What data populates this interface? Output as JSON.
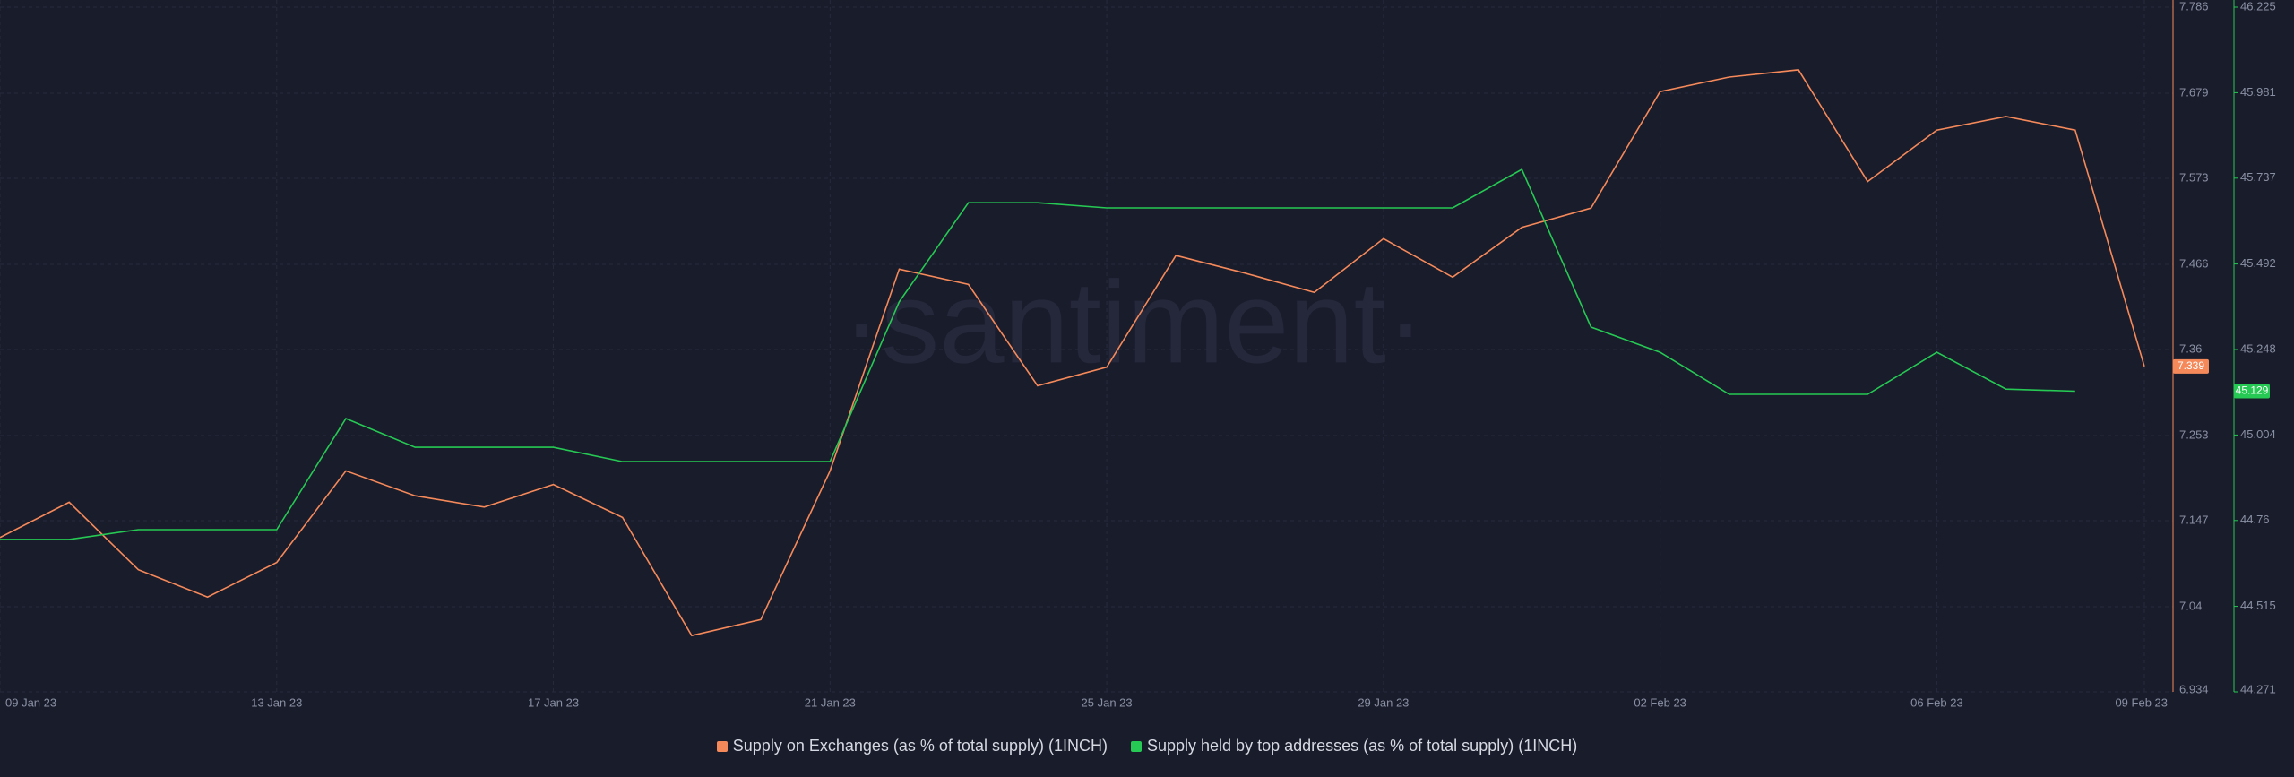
{
  "chart_data": {
    "type": "line",
    "watermark": "·santiment·",
    "categories": [
      "09 Jan 23",
      null,
      null,
      null,
      "13 Jan 23",
      null,
      null,
      null,
      "17 Jan 23",
      null,
      null,
      null,
      "21 Jan 23",
      null,
      null,
      null,
      "25 Jan 23",
      null,
      null,
      null,
      "29 Jan 23",
      null,
      null,
      null,
      "02 Feb 23",
      null,
      null,
      null,
      "06 Feb 23",
      null,
      null,
      "09 Feb 23"
    ],
    "series": [
      {
        "name": "Supply on Exchanges (as % of total supply) (1INCH)",
        "color": "#f5895a",
        "values": [
          7.126,
          7.17,
          7.086,
          7.052,
          7.095,
          7.209,
          7.178,
          7.164,
          7.192,
          7.151,
          7.004,
          7.024,
          7.209,
          7.46,
          7.441,
          7.315,
          7.338,
          7.477,
          7.455,
          7.431,
          7.498,
          7.45,
          7.512,
          7.536,
          7.681,
          7.699,
          7.708,
          7.569,
          7.633,
          7.65,
          7.633,
          7.339
        ]
      },
      {
        "name": "Supply held by top addresses (as % of total supply) (1INCH)",
        "color": "#26c953",
        "axis": "y2",
        "values": [
          44.706,
          44.706,
          44.734,
          44.734,
          44.734,
          45.051,
          44.969,
          44.969,
          44.969,
          44.928,
          44.928,
          44.928,
          44.928,
          45.384,
          45.667,
          45.667,
          45.652,
          45.652,
          45.652,
          45.652,
          45.652,
          45.652,
          45.762,
          45.312,
          45.24,
          45.12,
          45.12,
          45.12,
          45.24,
          45.135,
          45.129,
          null
        ]
      }
    ],
    "ylim": [
      6.934,
      7.786
    ],
    "yticks": [
      6.934,
      7.04,
      7.147,
      7.253,
      7.36,
      7.466,
      7.573,
      7.679,
      7.786
    ],
    "y2lim": [
      44.271,
      46.225
    ],
    "y2ticks": [
      44.271,
      44.515,
      44.76,
      45.004,
      45.248,
      45.492,
      45.737,
      45.981,
      46.225
    ],
    "grid": true
  }
}
